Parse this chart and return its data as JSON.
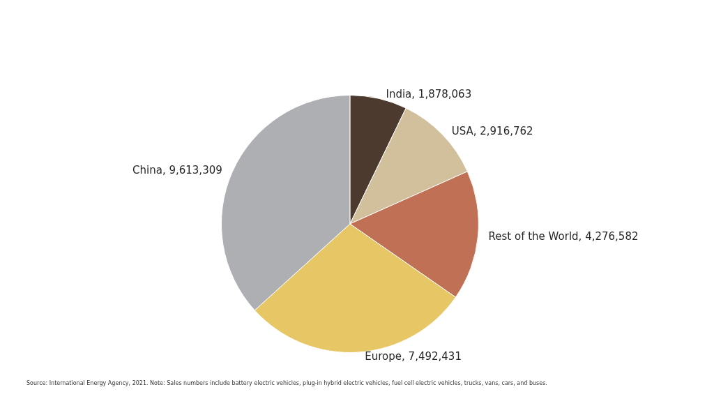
{
  "chart_data": {
    "type": "pie",
    "categories": [
      "India",
      "USA",
      "Rest of the World",
      "Europe",
      "China"
    ],
    "value_labels": [
      "1,878,063",
      "2,916,762",
      "4,276,582",
      "7,492,431",
      "9,613,309"
    ],
    "values": [
      1878063,
      2916762,
      4276582,
      7492431,
      9613309
    ],
    "colors": [
      "#4b3a2d",
      "#d2bf9b",
      "#c07155",
      "#e7c765",
      "#aeafb3"
    ],
    "legend": false,
    "annotations": [
      "Source: International Energy Agency, 2021. Note: Sales numbers include battery electric vehicles, plug-in hybrid electric vehicles, fuel cell electric vehicles, trucks, vans, cars, and buses."
    ]
  }
}
